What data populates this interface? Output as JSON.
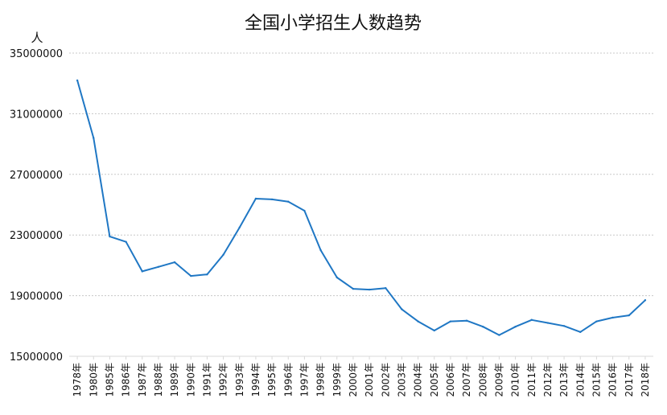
{
  "chart_data": {
    "type": "line",
    "title": "全国小学招生人数趋势",
    "unit_label": "人",
    "xlabel": "",
    "ylabel": "",
    "ylim": [
      15000000,
      35000000
    ],
    "yticks": [
      15000000,
      19000000,
      23000000,
      27000000,
      31000000,
      35000000
    ],
    "grid": true,
    "legend": "none",
    "line_color": "#1f77c4",
    "categories": [
      "1978年",
      "1980年",
      "1985年",
      "1986年",
      "1987年",
      "1988年",
      "1989年",
      "1990年",
      "1991年",
      "1992年",
      "1993年",
      "1994年",
      "1995年",
      "1996年",
      "1997年",
      "1998年",
      "1999年",
      "2000年",
      "2001年",
      "2002年",
      "2003年",
      "2004年",
      "2005年",
      "2006年",
      "2007年",
      "2008年",
      "2009年",
      "2010年",
      "2011年",
      "2012年",
      "2013年",
      "2014年",
      "2015年",
      "2016年",
      "2017年",
      "2018年"
    ],
    "series": [
      {
        "values": [
          33200000,
          29400000,
          22900000,
          22550000,
          20600000,
          20900000,
          21200000,
          20300000,
          20400000,
          21700000,
          23500000,
          25400000,
          25350000,
          25200000,
          24600000,
          22000000,
          20200000,
          19450000,
          19400000,
          19500000,
          18100000,
          17300000,
          16700000,
          17300000,
          17350000,
          16950000,
          16400000,
          16950000,
          17400000,
          17200000,
          17000000,
          16600000,
          17300000,
          17550000,
          17700000,
          18700000
        ]
      }
    ]
  }
}
